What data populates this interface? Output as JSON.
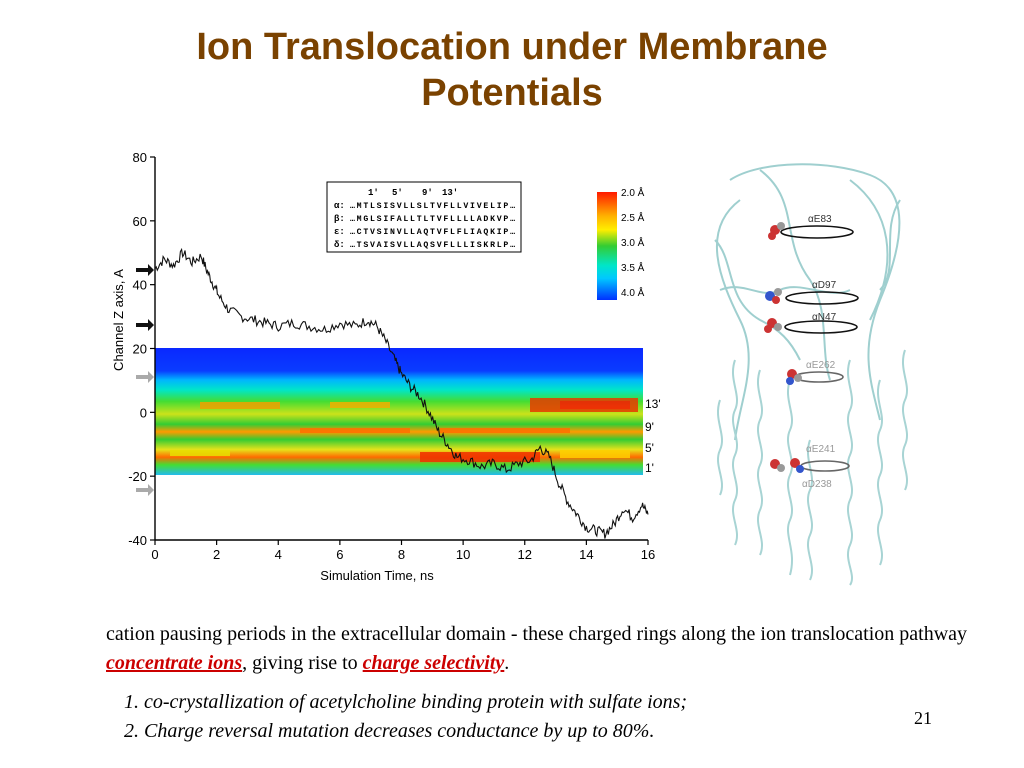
{
  "slide": {
    "title_line1": "Ion Translocation under Membrane",
    "title_line2": "Potentials",
    "page_number": "21"
  },
  "body": {
    "part1": "cation pausing periods in the extracellular domain - these charged rings along the ion translocation pathway ",
    "highlight1": "concentrate ions",
    "part2": ", giving rise to ",
    "highlight2": "charge selectivity",
    "part3": ".",
    "highlight_color": "#cc0000"
  },
  "references": [
    "1. co-crystallization of acetylcholine binding protein with sulfate ions;",
    "2. Charge reversal mutation decreases conductance by up to 80%."
  ],
  "chart_data": {
    "type": "line",
    "xlabel": "Simulation Time, ns",
    "ylabel": "Channel Z axis, A",
    "xlim": [
      0,
      16
    ],
    "ylim": [
      -40,
      80
    ],
    "x_ticks": [
      "0",
      "2",
      "4",
      "6",
      "8",
      "10",
      "12",
      "14",
      "16"
    ],
    "y_ticks": [
      "-40",
      "-20",
      "0",
      "20",
      "40",
      "60",
      "80"
    ],
    "series": [
      {
        "x": [
          0,
          0.3,
          0.6,
          0.9,
          1.2,
          1.5,
          1.7,
          1.9,
          2.1,
          2.4,
          2.8,
          3.2,
          3.6,
          4.0,
          4.5,
          5.0,
          5.5,
          6.0,
          6.5,
          6.9,
          7.2,
          7.5,
          7.8,
          8.0,
          8.3,
          8.6,
          8.9,
          9.2,
          9.5,
          9.8,
          10.2,
          10.6,
          11.0,
          11.4,
          11.8,
          12.2,
          12.5,
          12.8,
          13.1,
          13.4,
          13.7,
          14.0,
          14.3,
          14.6,
          14.9,
          15.2,
          15.5,
          15.8,
          16.0
        ],
        "y": [
          45,
          48,
          46,
          50,
          47,
          49,
          44,
          40,
          36,
          32,
          30,
          29,
          28,
          27,
          28,
          27,
          26,
          28,
          27,
          29,
          27,
          22,
          16,
          12,
          8,
          5,
          0,
          -6,
          -10,
          -14,
          -15,
          -17,
          -16,
          -18,
          -16,
          -15,
          -11,
          -14,
          -22,
          -28,
          -32,
          -36,
          -37,
          -38,
          -35,
          -30,
          -33,
          -29,
          -32
        ]
      }
    ],
    "ring_labels": [
      "13'",
      "9'",
      "5'",
      "1'"
    ],
    "inset_table": {
      "header": [
        "1'",
        "5'",
        "9'",
        "13'"
      ],
      "rows": [
        {
          "subunit": "α:",
          "seq": "…MTLSISVLLSLTVFLLVIVELIP…"
        },
        {
          "subunit": "β:",
          "seq": "…MGLSIFALLTLTVFLLLLADKVP…"
        },
        {
          "subunit": "ε:",
          "seq": "…CTVSINVLLAQTVFLFLIAQKIP…"
        },
        {
          "subunit": "δ:",
          "seq": "…TSVAISVLLAQSVFLLLISKRLP…"
        }
      ]
    },
    "colorbar": {
      "labels": [
        "2.0 Å",
        "2.5 Å",
        "3.0 Å",
        "3.5 Å",
        "4.0 Å"
      ],
      "colors": [
        "#ff2000",
        "#ffc800",
        "#33cc33",
        "#00e6ff",
        "#0033ff"
      ]
    }
  },
  "structure_labels": [
    "αE83",
    "αD97",
    "αN47",
    "αE262",
    "αE241",
    "αD238"
  ]
}
